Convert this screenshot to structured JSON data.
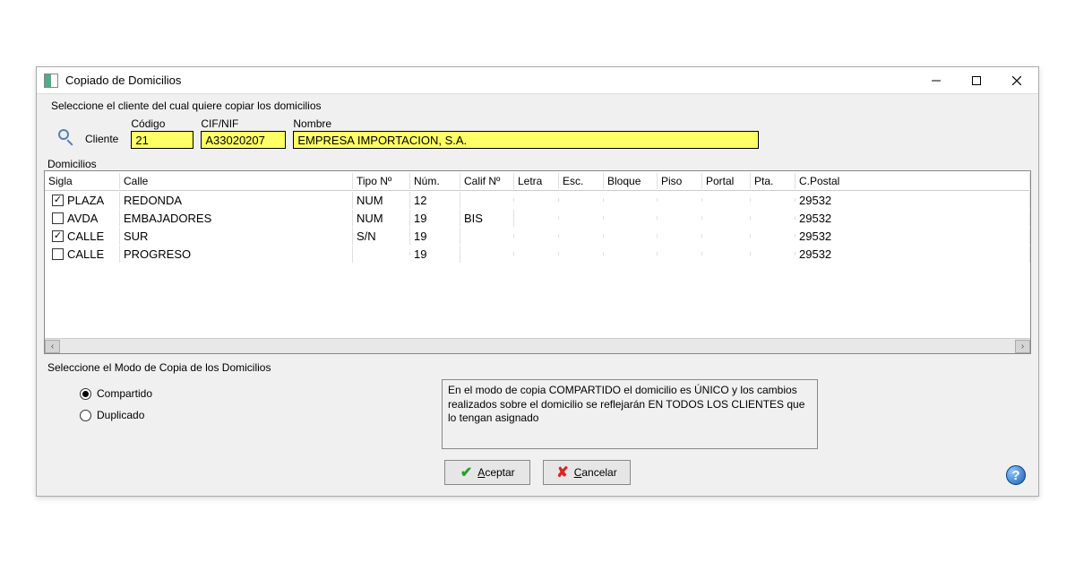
{
  "window": {
    "title": "Copiado de Domicilios"
  },
  "client_section": {
    "instruction": "Seleccione el cliente del cual quiere copiar los domicilios",
    "label": "Cliente",
    "fields": {
      "codigo": {
        "label": "Código",
        "value": "21"
      },
      "cif": {
        "label": "CIF/NIF",
        "value": "A33020207"
      },
      "nombre": {
        "label": "Nombre",
        "value": "EMPRESA IMPORTACION, S.A."
      }
    }
  },
  "addresses": {
    "title": "Domicilios",
    "columns": {
      "sigla": "Sigla",
      "calle": "Calle",
      "tipo": "Tipo Nº",
      "num": "Núm.",
      "calif": "Calif Nº",
      "letra": "Letra",
      "esc": "Esc.",
      "bloque": "Bloque",
      "piso": "Piso",
      "portal": "Portal",
      "pta": "Pta.",
      "cpostal": "C.Postal"
    },
    "rows": [
      {
        "checked": true,
        "sigla": "PLAZA",
        "calle": "REDONDA",
        "tipo": "NUM",
        "num": "12",
        "calif": "",
        "cpostal": "29532"
      },
      {
        "checked": false,
        "sigla": "AVDA",
        "calle": "EMBAJADORES",
        "tipo": "NUM",
        "num": "19",
        "calif": "BIS",
        "cpostal": "29532"
      },
      {
        "checked": true,
        "sigla": "CALLE",
        "calle": "SUR",
        "tipo": "S/N",
        "num": "19",
        "calif": "",
        "cpostal": "29532"
      },
      {
        "checked": false,
        "sigla": "CALLE",
        "calle": "PROGRESO",
        "tipo": "",
        "num": "19",
        "calif": "",
        "cpostal": "29532"
      }
    ]
  },
  "mode": {
    "title": "Seleccione el Modo de Copia de los Domicilios",
    "options": {
      "compartido": "Compartido",
      "duplicado": "Duplicado"
    },
    "selected": "compartido",
    "description": "En el modo de copia COMPARTIDO el domicilio es ÚNICO y los cambios realizados sobre el domicilio se reflejarán EN TODOS LOS CLIENTES que lo tengan asignado"
  },
  "buttons": {
    "accept": "Aceptar",
    "cancel": "Cancelar"
  }
}
